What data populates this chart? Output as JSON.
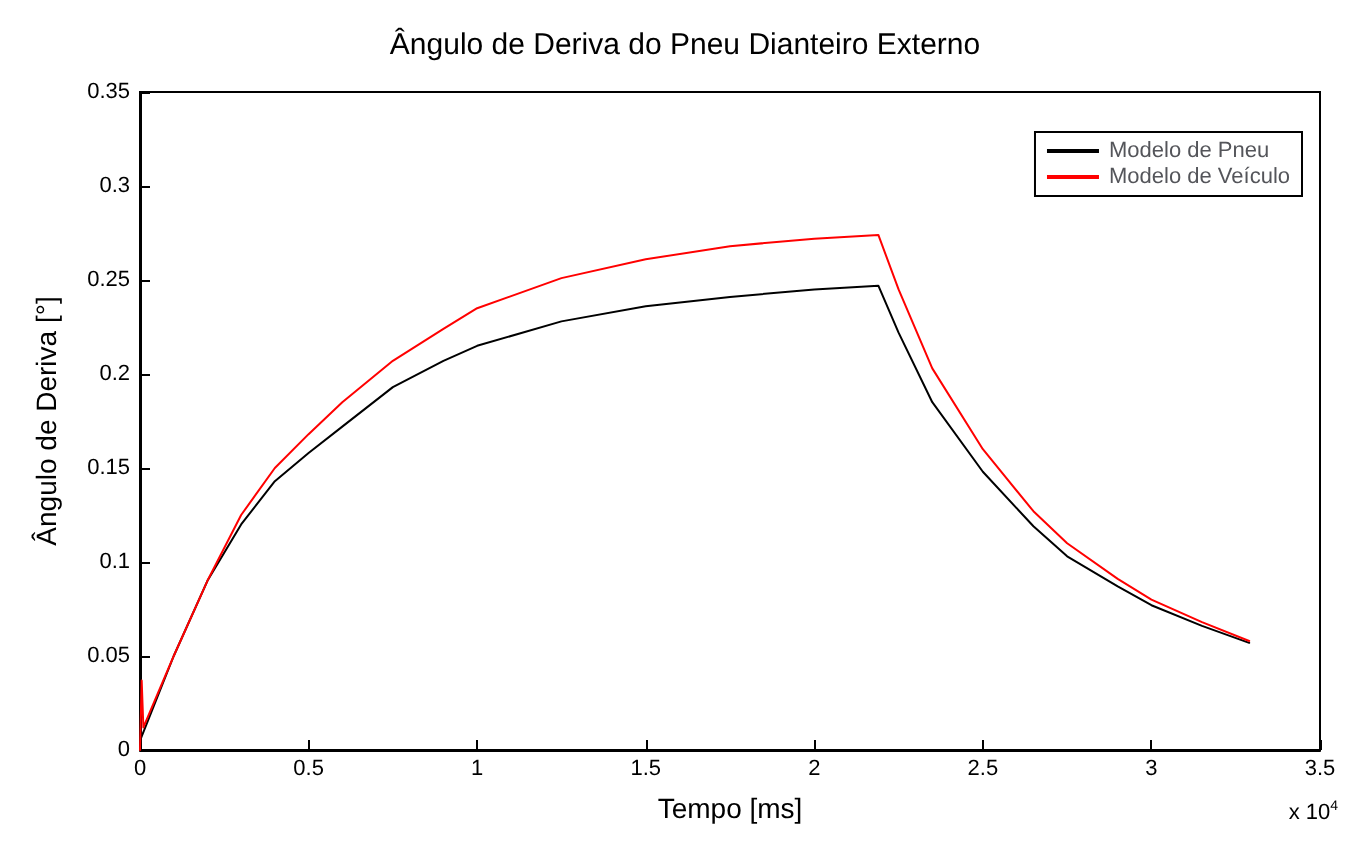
{
  "chart_data": {
    "type": "line",
    "title": "Ângulo de Deriva do Pneu Dianteiro Externo",
    "xlabel": "Tempo [ms]",
    "ylabel": "Ângulo de Deriva [°]",
    "annotations": [
      "x 10$^{4}$"
    ],
    "xlim": [
      0,
      3.5
    ],
    "xticks": [
      0,
      0.5,
      1,
      1.5,
      2,
      2.5,
      3,
      3.5
    ],
    "ylim": [
      0,
      0.35
    ],
    "yticks": [
      0,
      0.05,
      0.1,
      0.15,
      0.2,
      0.25,
      0.3,
      0.35
    ],
    "grid": false,
    "legend": "top right",
    "marker": "none",
    "line_style": "solid",
    "series": [
      {
        "name": "Modelo de Pneu",
        "color": "#000000",
        "x": [
          0,
          0.1,
          0.2,
          0.3,
          0.4,
          0.5,
          0.6,
          0.75,
          0.9,
          1,
          1.25,
          1.5,
          1.75,
          2,
          2.19,
          2.25,
          2.35,
          2.5,
          2.65,
          2.75,
          2.9,
          3,
          3.15,
          3.29
        ],
        "values": [
          0.005,
          0.05,
          0.09,
          0.12,
          0.143,
          0.158,
          0.172,
          0.193,
          0.207,
          0.215,
          0.228,
          0.236,
          0.241,
          0.245,
          0.247,
          0.222,
          0.185,
          0.148,
          0.119,
          0.103,
          0.087,
          0.077,
          0.066,
          0.057
        ]
      },
      {
        "name": "Modelo de Veículo",
        "color": "#ff0000",
        "x": [
          0,
          0.005,
          0.01,
          0.1,
          0.2,
          0.3,
          0.4,
          0.5,
          0.6,
          0.75,
          0.9,
          1,
          1.25,
          1.5,
          1.75,
          2,
          2.19,
          2.25,
          2.35,
          2.5,
          2.65,
          2.75,
          2.9,
          3,
          3.15,
          3.29
        ],
        "values": [
          0,
          0.037,
          0.012,
          0.05,
          0.09,
          0.125,
          0.15,
          0.168,
          0.185,
          0.207,
          0.224,
          0.235,
          0.251,
          0.261,
          0.268,
          0.272,
          0.274,
          0.245,
          0.203,
          0.16,
          0.127,
          0.11,
          0.091,
          0.08,
          0.068,
          0.058
        ]
      }
    ]
  }
}
